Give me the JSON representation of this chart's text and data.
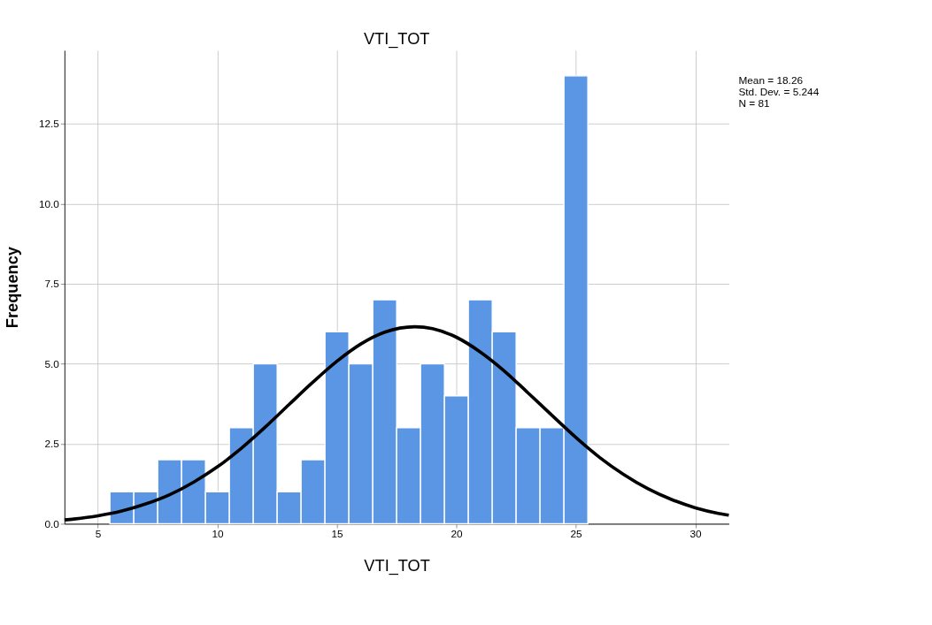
{
  "chart_data": {
    "type": "histogram",
    "title": "VTI_TOT",
    "xlabel": "VTI_TOT",
    "ylabel": "Frequency",
    "bins": [
      5.5,
      6.5,
      7.5,
      8.5,
      9.5,
      10.5,
      11.5,
      12.5,
      13.5,
      14.5,
      15.5,
      16.5,
      17.5,
      18.5,
      19.5,
      20.5,
      21.5,
      22.5,
      23.5,
      24.5,
      25.5
    ],
    "values": [
      1,
      1,
      2,
      2,
      1,
      3,
      5,
      1,
      2,
      6,
      5,
      7,
      3,
      5,
      4,
      7,
      6,
      3,
      3,
      14
    ],
    "color": "#5a96e3",
    "series": [
      {
        "type": "line",
        "color": "#000000",
        "x": [
          3.6,
          4,
          5,
          6,
          7,
          8,
          9,
          10,
          11,
          12,
          13,
          14,
          15,
          16,
          17,
          18.26,
          19,
          20,
          21,
          22,
          23,
          24,
          25,
          26,
          27,
          28,
          29,
          30,
          31,
          31.4
        ],
        "values": [
          0.12,
          0.15,
          0.25,
          0.4,
          0.62,
          0.91,
          1.3,
          1.78,
          2.36,
          3.02,
          3.73,
          4.43,
          5.08,
          5.62,
          5.99,
          6.16,
          6.1,
          5.83,
          5.37,
          4.78,
          4.09,
          3.39,
          2.7,
          2.07,
          1.54,
          1.1,
          0.76,
          0.5,
          0.32,
          0.27
        ]
      }
    ],
    "xlim": [
      3.6,
      31.4
    ],
    "xticks": [
      5,
      10,
      15,
      20,
      25,
      30
    ],
    "ylim": [
      0,
      14.8
    ],
    "yticks": [
      {
        "value": 0,
        "label": "0.0"
      },
      {
        "value": 2.5,
        "label": "2.5"
      },
      {
        "value": 5,
        "label": "5.0"
      },
      {
        "value": 7.5,
        "label": "7.5"
      },
      {
        "value": 10,
        "label": "10.0"
      },
      {
        "value": 12.5,
        "label": "12.5"
      }
    ],
    "grid": true,
    "annotations": [
      "Mean = 18.26",
      "Std. Dev. = 5.244",
      "N = 81"
    ]
  }
}
